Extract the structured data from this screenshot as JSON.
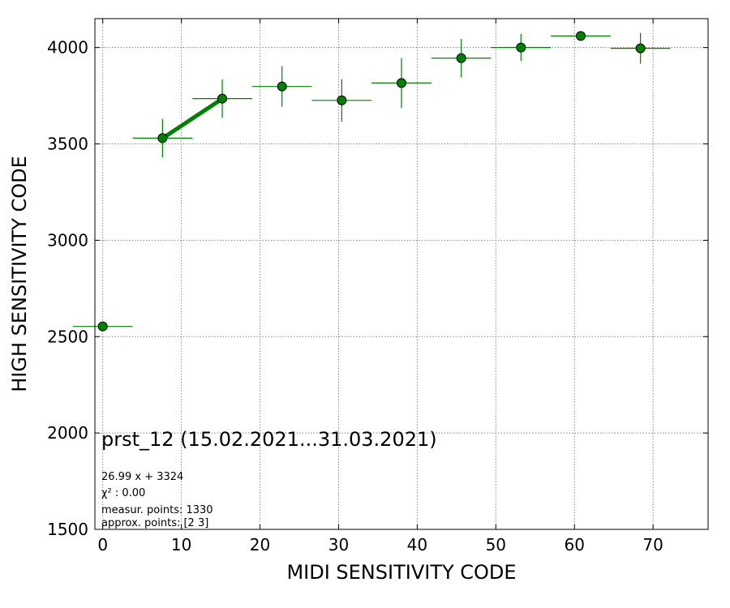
{
  "chart_data": {
    "type": "scatter",
    "xlabel": "MIDI SENSITIVITY CODE",
    "ylabel": "HIGH SENSITIVITY CODE",
    "xlim": [
      -1,
      77
    ],
    "ylim": [
      1500,
      4150
    ],
    "xticks": [
      0,
      10,
      20,
      30,
      40,
      50,
      60,
      70
    ],
    "yticks": [
      1500,
      2000,
      2500,
      3000,
      3500,
      4000
    ],
    "grid": true,
    "marker_color": "#008000",
    "errorbar_color": "#008000",
    "fit_color": "#008000",
    "points": [
      {
        "x": 0,
        "y": 2553,
        "xerr": 3.8,
        "yerr": 0
      },
      {
        "x": 7.6,
        "y": 3530,
        "xerr": 3.8,
        "yerr": 100
      },
      {
        "x": 15.2,
        "y": 3735,
        "xerr": 3.8,
        "yerr": 100
      },
      {
        "x": 22.8,
        "y": 3798,
        "xerr": 3.8,
        "yerr": 105
      },
      {
        "x": 30.4,
        "y": 3726,
        "xerr": 3.8,
        "yerr": 110
      },
      {
        "x": 38.0,
        "y": 3816,
        "xerr": 3.8,
        "yerr": 130
      },
      {
        "x": 45.6,
        "y": 3945,
        "xerr": 3.8,
        "yerr": 100
      },
      {
        "x": 53.2,
        "y": 4000,
        "xerr": 3.8,
        "yerr": 70
      },
      {
        "x": 60.8,
        "y": 4060,
        "xerr": 3.8,
        "yerr": 0
      },
      {
        "x": 68.4,
        "y": 3996,
        "xerr": 3.8,
        "yerr": 80
      }
    ],
    "fit": {
      "slope": 26.99,
      "intercept": 3324,
      "x_range": [
        7.6,
        15.2
      ]
    },
    "annotation": {
      "title": "prst_12 (15.02.2021...31.03.2021)",
      "lines": [
        "26.99 x + 3324",
        "χ² : 0.00",
        "measur. points: 1330",
        "approx. points: [2 3]"
      ]
    }
  }
}
